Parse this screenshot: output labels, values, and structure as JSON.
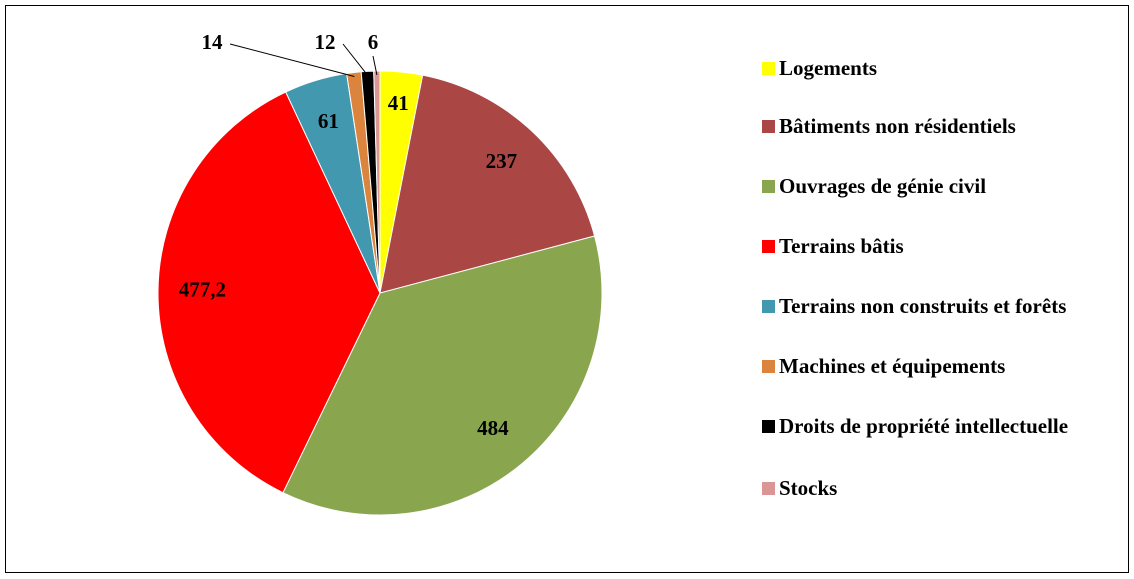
{
  "chart_data": {
    "type": "pie",
    "categories": [
      "Logements",
      "Bâtiments non résidentiels",
      "Ouvrages de génie civil",
      "Terrains bâtis",
      "Terrains non construits et forêts",
      "Machines et équipements",
      "Droits de propriété intellectuelle",
      "Stocks"
    ],
    "values": [
      41,
      237,
      484,
      477.2,
      61,
      14,
      12,
      6
    ],
    "value_labels": [
      "41",
      "237",
      "484",
      "477,2",
      "61",
      "14",
      "12",
      "6"
    ],
    "colors": [
      "#ffff00",
      "#aa4643",
      "#89a54e",
      "#ff0000",
      "#4198af",
      "#db843d",
      "#000000",
      "#d99694"
    ],
    "legend": "right"
  }
}
